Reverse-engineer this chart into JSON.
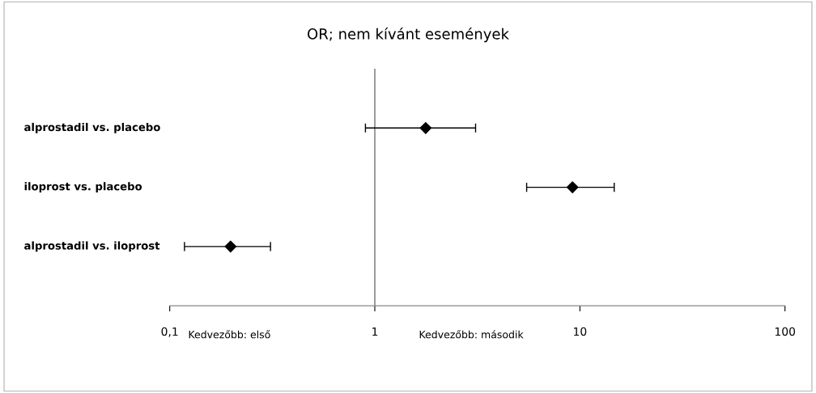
{
  "chart_data": {
    "type": "scatter",
    "orientation": "horizontal",
    "title": "OR; nem kívánt események",
    "categories": [
      "alprostadil vs. placebo",
      "iloprost vs. placebo",
      "alprostadil vs. iloprost"
    ],
    "series": [
      {
        "color": "#000000",
        "values": [
          1.77,
          9.2,
          0.198
        ],
        "errors": [
          [
            0.9,
            3.1
          ],
          [
            5.5,
            14.7
          ],
          [
            0.118,
            0.31
          ]
        ]
      }
    ],
    "log": "x",
    "xlim": [
      0.1,
      100
    ],
    "xticks": [
      {
        "value": 0.1,
        "label": "0,1"
      },
      1,
      10,
      100
    ],
    "ref_lines": [
      {
        "axis": "x",
        "value": 1,
        "color": "#888888"
      }
    ],
    "marker": "diamond",
    "grid": false,
    "legend": false,
    "annotations": [
      "Kedvezőbb: első",
      "Kedvezőbb: második"
    ]
  }
}
